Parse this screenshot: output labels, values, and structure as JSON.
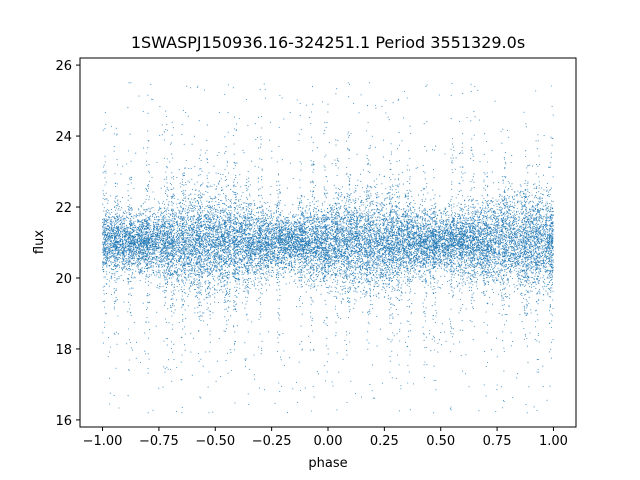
{
  "chart_data": {
    "type": "scatter",
    "title": "1SWASPJ150936.16-324251.1 Period 3551329.0s",
    "xlabel": "phase",
    "ylabel": "flux",
    "xlim": [
      -1.1,
      1.1
    ],
    "ylim": [
      15.8,
      26.2
    ],
    "grid": false,
    "marker_color": "#1f77b4",
    "x_ticks": [
      -1.0,
      -0.75,
      -0.5,
      -0.25,
      0.0,
      0.25,
      0.5,
      0.75,
      1.0
    ],
    "x_tick_labels": [
      "−1.00",
      "−0.75",
      "−0.50",
      "−0.25",
      "0.00",
      "0.25",
      "0.50",
      "0.75",
      "1.00"
    ],
    "y_ticks": [
      16,
      18,
      20,
      22,
      24,
      26
    ],
    "y_tick_labels": [
      "16",
      "18",
      "20",
      "22",
      "24",
      "26"
    ],
    "series": [
      {
        "x_range": [
          -1.0,
          1.0
        ],
        "y_center": 21.0,
        "y_core_spread": 0.55,
        "y_range": [
          16.2,
          25.5
        ],
        "point_count": 20000,
        "band_phases": [
          -0.99,
          -0.94,
          -0.88,
          -0.8,
          -0.72,
          -0.69,
          -0.64,
          -0.57,
          -0.53,
          -0.45,
          -0.41,
          -0.36,
          -0.3,
          -0.22,
          -0.12,
          -0.07,
          -0.01,
          0.04,
          0.09,
          0.18,
          0.28,
          0.31,
          0.36,
          0.43,
          0.47,
          0.55,
          0.59,
          0.64,
          0.7,
          0.78,
          0.88,
          0.93,
          0.99
        ]
      }
    ]
  }
}
